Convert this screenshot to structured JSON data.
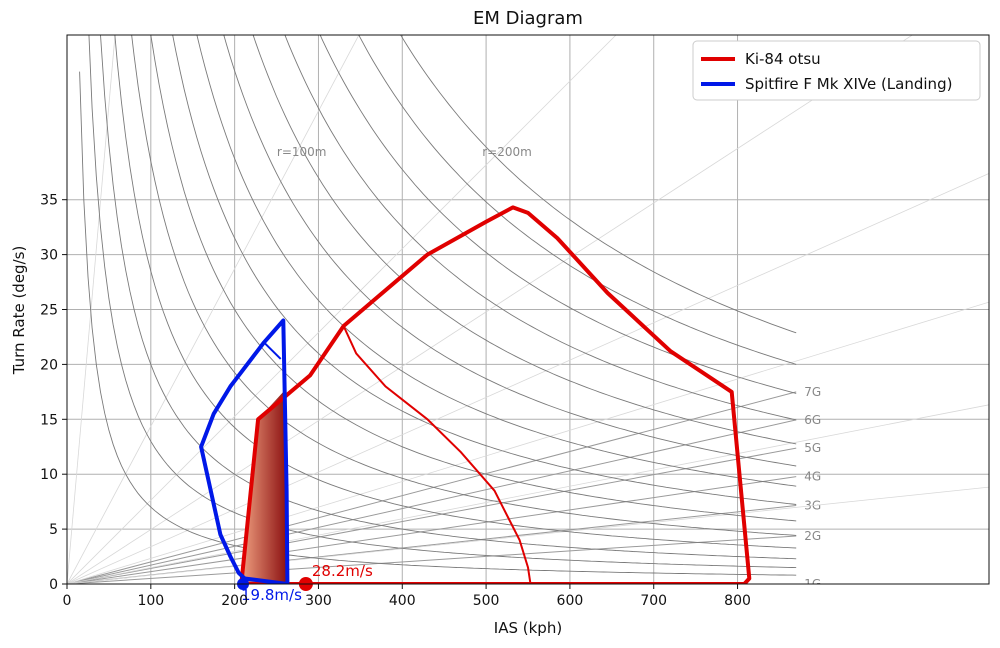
{
  "chart_data": {
    "type": "line",
    "title": "EM Diagram",
    "xlabel": "IAS (kph)",
    "ylabel": "Turn Rate (deg/s)",
    "xlim": [
      0,
      1100
    ],
    "ylim": [
      0,
      50
    ],
    "xticks": [
      0,
      100,
      200,
      300,
      400,
      500,
      600,
      700,
      800
    ],
    "yticks": [
      0,
      5,
      10,
      15,
      20,
      25,
      30,
      35
    ],
    "grid": true,
    "legend_position": "top-right",
    "g_lines": [
      {
        "label": "1G",
        "g": 1
      },
      {
        "label": "2G",
        "g": 2
      },
      {
        "label": "3G",
        "g": 3
      },
      {
        "label": "4G",
        "g": 4
      },
      {
        "label": "5G",
        "g": 5
      },
      {
        "label": "6G",
        "g": 6
      },
      {
        "label": "7G",
        "g": 7
      }
    ],
    "radius_labels": [
      {
        "label": "r=100m",
        "x": 280,
        "y": 39
      },
      {
        "label": "r=200m",
        "x": 525,
        "y": 39
      }
    ],
    "series": [
      {
        "name": "Ki-84 otsu",
        "color": "#e00000",
        "outline": [
          [
            208,
            0
          ],
          [
            228,
            15
          ],
          [
            290,
            19
          ],
          [
            330,
            23.5
          ],
          [
            430,
            30
          ],
          [
            500,
            33
          ],
          [
            532,
            34.3
          ],
          [
            550,
            33.8
          ],
          [
            585,
            31.5
          ],
          [
            645,
            26.5
          ],
          [
            720,
            21.2
          ],
          [
            793,
            17.5
          ],
          [
            814,
            0.5
          ],
          [
            808,
            0
          ],
          [
            208,
            0
          ]
        ],
        "sustained": [
          [
            330,
            23.5
          ],
          [
            345,
            21
          ],
          [
            380,
            18
          ],
          [
            430,
            15
          ],
          [
            470,
            12
          ],
          [
            510,
            8.5
          ],
          [
            540,
            4
          ],
          [
            550,
            1.5
          ],
          [
            553,
            0
          ]
        ]
      },
      {
        "name": "Spitfire F Mk XIVe (Landing)",
        "color": "#0018e8",
        "outline": [
          [
            212,
            0.5
          ],
          [
            205,
            1
          ],
          [
            195,
            2.5
          ],
          [
            183,
            4.5
          ],
          [
            160,
            12.5
          ],
          [
            175,
            15.5
          ],
          [
            195,
            18
          ],
          [
            235,
            22
          ],
          [
            258,
            24
          ],
          [
            262,
            8.5
          ],
          [
            263,
            0
          ],
          [
            212,
            0.5
          ]
        ],
        "inner": [
          [
            235,
            22
          ],
          [
            255,
            20.5
          ]
        ]
      }
    ],
    "shaded_region": [
      [
        208,
        0
      ],
      [
        228,
        15
      ],
      [
        240,
        16
      ],
      [
        258,
        17.5
      ],
      [
        262,
        8.5
      ],
      [
        263,
        0
      ]
    ],
    "annotations": [
      {
        "text": "28.2m/s",
        "x": 285,
        "y": 0,
        "color": "#e00000"
      },
      {
        "text": "19.8m/s",
        "x": 210,
        "y": 0,
        "color": "#0018e8"
      }
    ]
  }
}
